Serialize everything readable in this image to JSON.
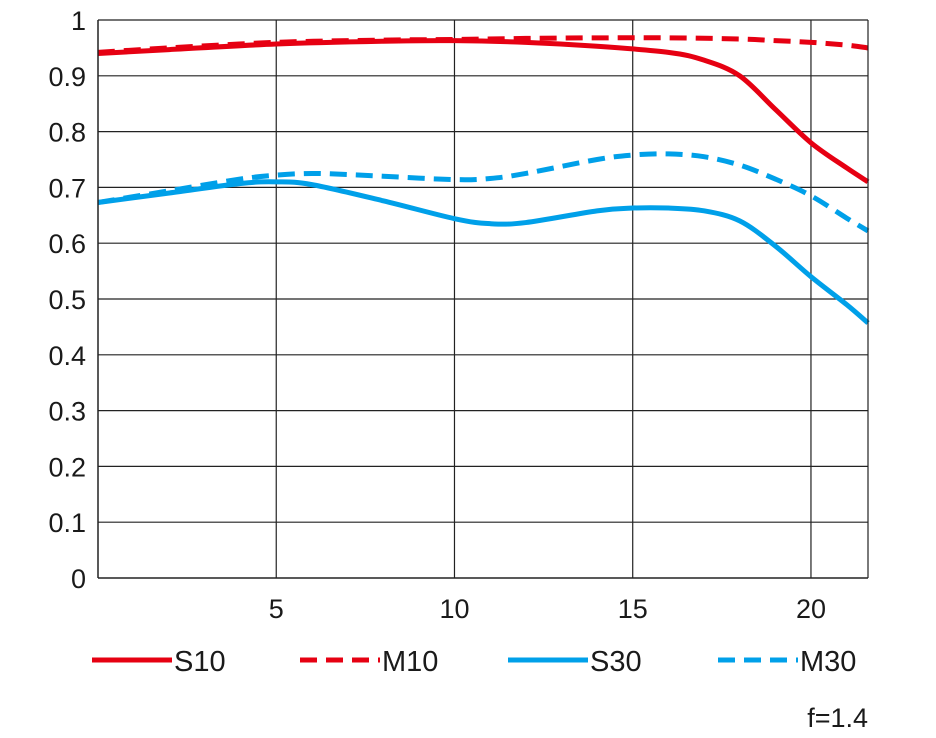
{
  "chart_data": {
    "type": "line",
    "xlim": [
      0,
      21.6
    ],
    "ylim": [
      0,
      1
    ],
    "x_ticks": [
      5,
      10,
      15,
      20
    ],
    "y_ticks": [
      0,
      0.1,
      0.2,
      0.3,
      0.4,
      0.5,
      0.6,
      0.7,
      0.8,
      0.9,
      1
    ],
    "x_tick_labels": [
      "5",
      "10",
      "15",
      "20"
    ],
    "y_tick_labels": [
      "0",
      "0.1",
      "0.2",
      "0.3",
      "0.4",
      "0.5",
      "0.6",
      "0.7",
      "0.8",
      "0.9",
      "1"
    ],
    "grid": true,
    "legend_position": "bottom",
    "annotation": "f=1.4",
    "series": [
      {
        "name": "S10",
        "color": "#e60012",
        "dash": "solid",
        "points": [
          [
            0,
            0.94
          ],
          [
            2,
            0.947
          ],
          [
            5,
            0.957
          ],
          [
            8,
            0.962
          ],
          [
            10,
            0.963
          ],
          [
            12,
            0.96
          ],
          [
            14,
            0.953
          ],
          [
            16,
            0.942
          ],
          [
            17,
            0.928
          ],
          [
            18,
            0.9
          ],
          [
            19,
            0.84
          ],
          [
            20,
            0.78
          ],
          [
            21,
            0.735
          ],
          [
            21.6,
            0.71
          ]
        ]
      },
      {
        "name": "M10",
        "color": "#e60012",
        "dash": "dashed",
        "points": [
          [
            0,
            0.942
          ],
          [
            2,
            0.95
          ],
          [
            5,
            0.96
          ],
          [
            8,
            0.964
          ],
          [
            10,
            0.965
          ],
          [
            12,
            0.967
          ],
          [
            14,
            0.968
          ],
          [
            16,
            0.968
          ],
          [
            18,
            0.966
          ],
          [
            19,
            0.963
          ],
          [
            20,
            0.96
          ],
          [
            21,
            0.955
          ],
          [
            21.6,
            0.95
          ]
        ]
      },
      {
        "name": "S30",
        "color": "#00a0e9",
        "dash": "solid",
        "points": [
          [
            0,
            0.673
          ],
          [
            2,
            0.69
          ],
          [
            4,
            0.707
          ],
          [
            5,
            0.71
          ],
          [
            6,
            0.705
          ],
          [
            8,
            0.676
          ],
          [
            10,
            0.644
          ],
          [
            11,
            0.635
          ],
          [
            12,
            0.637
          ],
          [
            14,
            0.658
          ],
          [
            15,
            0.663
          ],
          [
            16,
            0.663
          ],
          [
            17,
            0.658
          ],
          [
            18,
            0.64
          ],
          [
            19,
            0.595
          ],
          [
            20,
            0.54
          ],
          [
            21,
            0.49
          ],
          [
            21.6,
            0.457
          ]
        ]
      },
      {
        "name": "M30",
        "color": "#00a0e9",
        "dash": "dashed",
        "points": [
          [
            0,
            0.673
          ],
          [
            2,
            0.694
          ],
          [
            4,
            0.715
          ],
          [
            5,
            0.722
          ],
          [
            6,
            0.725
          ],
          [
            7,
            0.723
          ],
          [
            8,
            0.72
          ],
          [
            10,
            0.714
          ],
          [
            11,
            0.716
          ],
          [
            12,
            0.725
          ],
          [
            14,
            0.75
          ],
          [
            15,
            0.758
          ],
          [
            16,
            0.76
          ],
          [
            17,
            0.755
          ],
          [
            18,
            0.74
          ],
          [
            19,
            0.715
          ],
          [
            20,
            0.685
          ],
          [
            21,
            0.645
          ],
          [
            21.6,
            0.622
          ]
        ]
      }
    ]
  }
}
